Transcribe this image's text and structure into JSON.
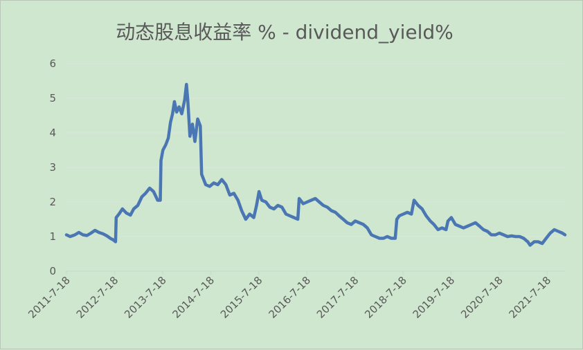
{
  "title": "动态股息收益率 % - dividend_yield%",
  "colors": {
    "background": "#cfe6cf",
    "series": "#4a76b3",
    "grid": "#dde6dd",
    "text": "#595959"
  },
  "chart_data": {
    "type": "line",
    "title": "动态股息收益率 % - dividend_yield%",
    "xlabel": "",
    "ylabel": "",
    "ylim": [
      0,
      6
    ],
    "yticks": [
      "0",
      "1",
      "2",
      "3",
      "4",
      "5",
      "6"
    ],
    "xlim": [
      "2011-7-18",
      "2021-11-30"
    ],
    "xticks": [
      "2011-7-18",
      "2012-7-18",
      "2013-7-18",
      "2014-7-18",
      "2015-7-18",
      "2016-7-18",
      "2017-7-18",
      "2018-7-18",
      "2019-7-18",
      "2020-7-18",
      "2021-7-18"
    ],
    "grid": "horizontal",
    "legend": "none",
    "series": [
      {
        "points": [
          [
            "2011-7-18",
            1.05
          ],
          [
            "2011-8-15",
            1.0
          ],
          [
            "2011-9-20",
            1.05
          ],
          [
            "2011-10-20",
            1.12
          ],
          [
            "2011-11-20",
            1.05
          ],
          [
            "2011-12-20",
            1.03
          ],
          [
            "2012-1-20",
            1.1
          ],
          [
            "2012-2-20",
            1.18
          ],
          [
            "2012-3-20",
            1.12
          ],
          [
            "2012-4-20",
            1.08
          ],
          [
            "2012-5-20",
            1.02
          ],
          [
            "2012-6-15",
            0.95
          ],
          [
            "2012-7-10",
            0.9
          ],
          [
            "2012-7-25",
            0.85
          ],
          [
            "2012-7-30",
            1.55
          ],
          [
            "2012-8-20",
            1.65
          ],
          [
            "2012-9-15",
            1.8
          ],
          [
            "2012-10-15",
            1.68
          ],
          [
            "2012-11-15",
            1.62
          ],
          [
            "2012-12-10",
            1.8
          ],
          [
            "2013-1-10",
            1.9
          ],
          [
            "2013-2-10",
            2.15
          ],
          [
            "2013-3-10",
            2.25
          ],
          [
            "2013-4-10",
            2.4
          ],
          [
            "2013-5-10",
            2.3
          ],
          [
            "2013-6-10",
            2.05
          ],
          [
            "2013-6-30",
            2.05
          ],
          [
            "2013-7-5",
            3.2
          ],
          [
            "2013-7-20",
            3.5
          ],
          [
            "2013-8-10",
            3.65
          ],
          [
            "2013-8-30",
            3.85
          ],
          [
            "2013-9-15",
            4.3
          ],
          [
            "2013-10-1",
            4.55
          ],
          [
            "2013-10-15",
            4.9
          ],
          [
            "2013-11-1",
            4.6
          ],
          [
            "2013-11-20",
            4.75
          ],
          [
            "2013-12-10",
            4.55
          ],
          [
            "2014-1-1",
            4.95
          ],
          [
            "2014-1-15",
            5.4
          ],
          [
            "2014-1-25",
            4.95
          ],
          [
            "2014-2-10",
            3.9
          ],
          [
            "2014-3-1",
            4.25
          ],
          [
            "2014-3-20",
            3.75
          ],
          [
            "2014-4-10",
            4.4
          ],
          [
            "2014-4-30",
            4.2
          ],
          [
            "2014-5-10",
            2.8
          ],
          [
            "2014-6-10",
            2.5
          ],
          [
            "2014-7-10",
            2.45
          ],
          [
            "2014-8-10",
            2.55
          ],
          [
            "2014-9-10",
            2.5
          ],
          [
            "2014-10-10",
            2.65
          ],
          [
            "2014-11-10",
            2.5
          ],
          [
            "2014-12-10",
            2.2
          ],
          [
            "2015-1-10",
            2.25
          ],
          [
            "2015-2-10",
            2.05
          ],
          [
            "2015-3-10",
            1.75
          ],
          [
            "2015-4-10",
            1.5
          ],
          [
            "2015-5-10",
            1.65
          ],
          [
            "2015-6-10",
            1.55
          ],
          [
            "2015-7-1",
            1.9
          ],
          [
            "2015-7-20",
            2.3
          ],
          [
            "2015-8-10",
            2.05
          ],
          [
            "2015-9-10",
            2.0
          ],
          [
            "2015-10-10",
            1.85
          ],
          [
            "2015-11-10",
            1.8
          ],
          [
            "2015-12-10",
            1.9
          ],
          [
            "2016-1-10",
            1.85
          ],
          [
            "2016-2-10",
            1.65
          ],
          [
            "2016-3-10",
            1.6
          ],
          [
            "2016-4-10",
            1.55
          ],
          [
            "2016-5-10",
            1.5
          ],
          [
            "2016-5-20",
            2.1
          ],
          [
            "2016-6-20",
            1.95
          ],
          [
            "2016-7-20",
            2.0
          ],
          [
            "2016-8-20",
            2.05
          ],
          [
            "2016-9-20",
            2.1
          ],
          [
            "2016-10-20",
            2.0
          ],
          [
            "2016-11-20",
            1.9
          ],
          [
            "2016-12-20",
            1.85
          ],
          [
            "2017-1-20",
            1.75
          ],
          [
            "2017-2-20",
            1.7
          ],
          [
            "2017-3-20",
            1.6
          ],
          [
            "2017-4-20",
            1.5
          ],
          [
            "2017-5-20",
            1.4
          ],
          [
            "2017-6-20",
            1.35
          ],
          [
            "2017-7-20",
            1.45
          ],
          [
            "2017-8-20",
            1.4
          ],
          [
            "2017-9-20",
            1.35
          ],
          [
            "2017-10-20",
            1.25
          ],
          [
            "2017-11-20",
            1.05
          ],
          [
            "2017-12-20",
            1.0
          ],
          [
            "2018-1-20",
            0.95
          ],
          [
            "2018-2-20",
            0.95
          ],
          [
            "2018-3-20",
            1.0
          ],
          [
            "2018-4-20",
            0.95
          ],
          [
            "2018-5-20",
            0.95
          ],
          [
            "2018-6-1",
            1.5
          ],
          [
            "2018-6-20",
            1.6
          ],
          [
            "2018-7-20",
            1.65
          ],
          [
            "2018-8-20",
            1.7
          ],
          [
            "2018-9-20",
            1.65
          ],
          [
            "2018-10-10",
            2.05
          ],
          [
            "2018-11-10",
            1.9
          ],
          [
            "2018-12-10",
            1.8
          ],
          [
            "2019-1-10",
            1.6
          ],
          [
            "2019-2-10",
            1.45
          ],
          [
            "2019-3-10",
            1.35
          ],
          [
            "2019-4-10",
            1.2
          ],
          [
            "2019-5-10",
            1.25
          ],
          [
            "2019-6-10",
            1.2
          ],
          [
            "2019-6-25",
            1.45
          ],
          [
            "2019-7-20",
            1.55
          ],
          [
            "2019-8-20",
            1.35
          ],
          [
            "2019-9-20",
            1.3
          ],
          [
            "2019-10-20",
            1.25
          ],
          [
            "2019-11-20",
            1.3
          ],
          [
            "2019-12-20",
            1.35
          ],
          [
            "2020-1-20",
            1.4
          ],
          [
            "2020-2-20",
            1.3
          ],
          [
            "2020-3-20",
            1.2
          ],
          [
            "2020-4-20",
            1.15
          ],
          [
            "2020-5-20",
            1.05
          ],
          [
            "2020-6-20",
            1.05
          ],
          [
            "2020-7-20",
            1.1
          ],
          [
            "2020-8-20",
            1.05
          ],
          [
            "2020-9-20",
            1.0
          ],
          [
            "2020-10-20",
            1.02
          ],
          [
            "2020-11-20",
            1.0
          ],
          [
            "2020-12-20",
            1.0
          ],
          [
            "2021-1-20",
            0.95
          ],
          [
            "2021-2-20",
            0.85
          ],
          [
            "2021-3-10",
            0.75
          ],
          [
            "2021-4-10",
            0.85
          ],
          [
            "2021-5-10",
            0.85
          ],
          [
            "2021-6-10",
            0.8
          ],
          [
            "2021-7-10",
            0.95
          ],
          [
            "2021-8-10",
            1.1
          ],
          [
            "2021-9-10",
            1.2
          ],
          [
            "2021-10-10",
            1.15
          ],
          [
            "2021-11-10",
            1.1
          ],
          [
            "2021-11-30",
            1.05
          ]
        ]
      }
    ]
  }
}
